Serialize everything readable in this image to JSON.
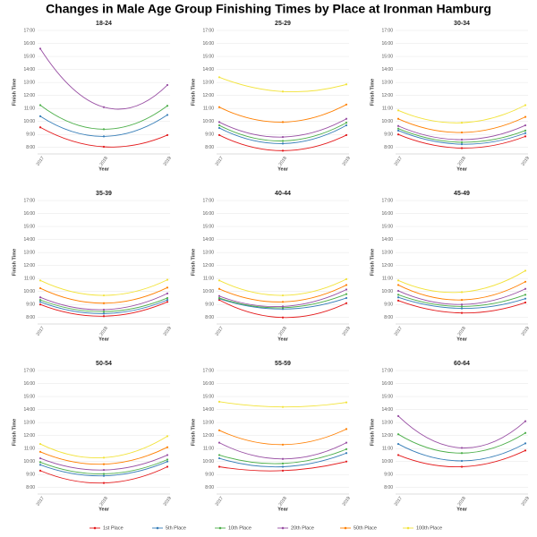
{
  "title": "Changes in Male Age Group Finishing Times by Place at Ironman Hamburg",
  "chart_data": [
    {
      "type": "line",
      "title": "18-24",
      "x_label": "Year",
      "y_label": "Finish Time",
      "categories": [
        "2017",
        "2018",
        "2019"
      ],
      "ylim": [
        7.5,
        17
      ],
      "yticks": [
        {
          "value": 8,
          "label": "8:00"
        },
        {
          "value": 9,
          "label": "9:00"
        },
        {
          "value": 10,
          "label": "10:00"
        },
        {
          "value": 11,
          "label": "11:00"
        },
        {
          "value": 12,
          "label": "12:00"
        },
        {
          "value": 13,
          "label": "13:00"
        },
        {
          "value": 14,
          "label": "14:00"
        },
        {
          "value": 15,
          "label": "15:00"
        },
        {
          "value": 16,
          "label": "16:00"
        },
        {
          "value": 17,
          "label": "17:00"
        }
      ],
      "series": [
        {
          "name": "1st Place",
          "color": "#e41a1c",
          "values": [
            9.55,
            8.05,
            8.95
          ]
        },
        {
          "name": "5th Place",
          "color": "#377eb8",
          "values": [
            10.4,
            8.85,
            10.5
          ]
        },
        {
          "name": "10th Place",
          "color": "#4daf4a",
          "values": [
            11.25,
            9.4,
            11.2
          ]
        },
        {
          "name": "20th Place",
          "color": "#984ea3",
          "values": [
            15.6,
            11.1,
            12.8
          ]
        },
        {
          "name": "50th Place",
          "color": "#ff7f00",
          "values": [
            null,
            null,
            null
          ]
        },
        {
          "name": "100th Place",
          "color": "#f2e33a",
          "values": [
            null,
            null,
            null
          ]
        }
      ]
    },
    {
      "type": "line",
      "title": "25-29",
      "x_label": "Year",
      "y_label": "Finish Time",
      "categories": [
        "2017",
        "2018",
        "2019"
      ],
      "ylim": [
        7.5,
        17
      ],
      "yticks": [
        {
          "value": 8,
          "label": "8:00"
        },
        {
          "value": 9,
          "label": "9:00"
        },
        {
          "value": 10,
          "label": "10:00"
        },
        {
          "value": 11,
          "label": "11:00"
        },
        {
          "value": 12,
          "label": "12:00"
        },
        {
          "value": 13,
          "label": "13:00"
        },
        {
          "value": 14,
          "label": "14:00"
        },
        {
          "value": 15,
          "label": "15:00"
        },
        {
          "value": 16,
          "label": "16:00"
        },
        {
          "value": 17,
          "label": "17:00"
        }
      ],
      "series": [
        {
          "name": "1st Place",
          "color": "#e41a1c",
          "values": [
            8.95,
            7.75,
            8.95
          ]
        },
        {
          "name": "5th Place",
          "color": "#377eb8",
          "values": [
            9.5,
            8.3,
            9.7
          ]
        },
        {
          "name": "10th Place",
          "color": "#4daf4a",
          "values": [
            9.7,
            8.5,
            9.9
          ]
        },
        {
          "name": "20th Place",
          "color": "#984ea3",
          "values": [
            9.95,
            8.8,
            10.2
          ]
        },
        {
          "name": "50th Place",
          "color": "#ff7f00",
          "values": [
            11.1,
            9.95,
            11.3
          ]
        },
        {
          "name": "100th Place",
          "color": "#f2e33a",
          "values": [
            13.4,
            12.3,
            12.85
          ]
        }
      ]
    },
    {
      "type": "line",
      "title": "30-34",
      "x_label": "Year",
      "y_label": "Finish Time",
      "categories": [
        "2017",
        "2018",
        "2019"
      ],
      "ylim": [
        7.5,
        17
      ],
      "yticks": [
        {
          "value": 8,
          "label": "8:00"
        },
        {
          "value": 9,
          "label": "9:00"
        },
        {
          "value": 10,
          "label": "10:00"
        },
        {
          "value": 11,
          "label": "11:00"
        },
        {
          "value": 12,
          "label": "12:00"
        },
        {
          "value": 13,
          "label": "13:00"
        },
        {
          "value": 14,
          "label": "14:00"
        },
        {
          "value": 15,
          "label": "15:00"
        },
        {
          "value": 16,
          "label": "16:00"
        },
        {
          "value": 17,
          "label": "17:00"
        }
      ],
      "series": [
        {
          "name": "1st Place",
          "color": "#e41a1c",
          "values": [
            9.0,
            7.95,
            8.85
          ]
        },
        {
          "name": "5th Place",
          "color": "#377eb8",
          "values": [
            9.3,
            8.25,
            9.1
          ]
        },
        {
          "name": "10th Place",
          "color": "#4daf4a",
          "values": [
            9.45,
            8.4,
            9.3
          ]
        },
        {
          "name": "20th Place",
          "color": "#984ea3",
          "values": [
            9.65,
            8.6,
            9.7
          ]
        },
        {
          "name": "50th Place",
          "color": "#ff7f00",
          "values": [
            10.2,
            9.15,
            10.35
          ]
        },
        {
          "name": "100th Place",
          "color": "#f2e33a",
          "values": [
            10.85,
            9.9,
            11.25
          ]
        }
      ]
    },
    {
      "type": "line",
      "title": "35-39",
      "x_label": "Year",
      "y_label": "Finish Time",
      "categories": [
        "2017",
        "2018",
        "2019"
      ],
      "ylim": [
        7.5,
        17
      ],
      "yticks": [
        {
          "value": 8,
          "label": "8:00"
        },
        {
          "value": 9,
          "label": "9:00"
        },
        {
          "value": 10,
          "label": "10:00"
        },
        {
          "value": 11,
          "label": "11:00"
        },
        {
          "value": 12,
          "label": "12:00"
        },
        {
          "value": 13,
          "label": "13:00"
        },
        {
          "value": 14,
          "label": "14:00"
        },
        {
          "value": 15,
          "label": "15:00"
        },
        {
          "value": 16,
          "label": "16:00"
        },
        {
          "value": 17,
          "label": "17:00"
        }
      ],
      "series": [
        {
          "name": "1st Place",
          "color": "#e41a1c",
          "values": [
            9.0,
            8.1,
            9.2
          ]
        },
        {
          "name": "5th Place",
          "color": "#377eb8",
          "values": [
            9.2,
            8.3,
            9.35
          ]
        },
        {
          "name": "10th Place",
          "color": "#4daf4a",
          "values": [
            9.35,
            8.45,
            9.5
          ]
        },
        {
          "name": "20th Place",
          "color": "#984ea3",
          "values": [
            9.55,
            8.6,
            9.85
          ]
        },
        {
          "name": "50th Place",
          "color": "#ff7f00",
          "values": [
            10.25,
            9.1,
            10.3
          ]
        },
        {
          "name": "100th Place",
          "color": "#f2e33a",
          "values": [
            10.85,
            9.7,
            10.9
          ]
        }
      ]
    },
    {
      "type": "line",
      "title": "40-44",
      "x_label": "Year",
      "y_label": "Finish Time",
      "categories": [
        "2017",
        "2018",
        "2019"
      ],
      "ylim": [
        7.5,
        17
      ],
      "yticks": [
        {
          "value": 8,
          "label": "8:00"
        },
        {
          "value": 9,
          "label": "9:00"
        },
        {
          "value": 10,
          "label": "10:00"
        },
        {
          "value": 11,
          "label": "11:00"
        },
        {
          "value": 12,
          "label": "12:00"
        },
        {
          "value": 13,
          "label": "13:00"
        },
        {
          "value": 14,
          "label": "14:00"
        },
        {
          "value": 15,
          "label": "15:00"
        },
        {
          "value": 16,
          "label": "16:00"
        },
        {
          "value": 17,
          "label": "17:00"
        }
      ],
      "series": [
        {
          "name": "1st Place",
          "color": "#e41a1c",
          "values": [
            9.35,
            8.0,
            9.1
          ]
        },
        {
          "name": "5th Place",
          "color": "#377eb8",
          "values": [
            9.45,
            8.65,
            9.5
          ]
        },
        {
          "name": "10th Place",
          "color": "#4daf4a",
          "values": [
            9.5,
            8.75,
            9.8
          ]
        },
        {
          "name": "20th Place",
          "color": "#984ea3",
          "values": [
            9.65,
            8.85,
            10.15
          ]
        },
        {
          "name": "50th Place",
          "color": "#ff7f00",
          "values": [
            10.2,
            9.2,
            10.5
          ]
        },
        {
          "name": "100th Place",
          "color": "#f2e33a",
          "values": [
            10.85,
            9.7,
            10.95
          ]
        }
      ]
    },
    {
      "type": "line",
      "title": "45-49",
      "x_label": "Year",
      "y_label": "Finish Time",
      "categories": [
        "2017",
        "2018",
        "2019"
      ],
      "ylim": [
        7.5,
        17
      ],
      "yticks": [
        {
          "value": 8,
          "label": "8:00"
        },
        {
          "value": 9,
          "label": "9:00"
        },
        {
          "value": 10,
          "label": "10:00"
        },
        {
          "value": 11,
          "label": "11:00"
        },
        {
          "value": 12,
          "label": "12:00"
        },
        {
          "value": 13,
          "label": "13:00"
        },
        {
          "value": 14,
          "label": "14:00"
        },
        {
          "value": 15,
          "label": "15:00"
        },
        {
          "value": 16,
          "label": "16:00"
        },
        {
          "value": 17,
          "label": "17:00"
        }
      ],
      "series": [
        {
          "name": "1st Place",
          "color": "#e41a1c",
          "values": [
            9.3,
            8.35,
            9.15
          ]
        },
        {
          "name": "5th Place",
          "color": "#377eb8",
          "values": [
            9.55,
            8.7,
            9.45
          ]
        },
        {
          "name": "10th Place",
          "color": "#4daf4a",
          "values": [
            9.75,
            8.85,
            9.75
          ]
        },
        {
          "name": "20th Place",
          "color": "#984ea3",
          "values": [
            10.05,
            9.0,
            10.2
          ]
        },
        {
          "name": "50th Place",
          "color": "#ff7f00",
          "values": [
            10.5,
            9.35,
            10.75
          ]
        },
        {
          "name": "100th Place",
          "color": "#f2e33a",
          "values": [
            10.85,
            9.95,
            11.6
          ]
        }
      ]
    },
    {
      "type": "line",
      "title": "50-54",
      "x_label": "Year",
      "y_label": "Finish Time",
      "categories": [
        "2017",
        "2018",
        "2019"
      ],
      "ylim": [
        7.5,
        17
      ],
      "yticks": [
        {
          "value": 8,
          "label": "8:00"
        },
        {
          "value": 9,
          "label": "9:00"
        },
        {
          "value": 10,
          "label": "10:00"
        },
        {
          "value": 11,
          "label": "11:00"
        },
        {
          "value": 12,
          "label": "12:00"
        },
        {
          "value": 13,
          "label": "13:00"
        },
        {
          "value": 14,
          "label": "14:00"
        },
        {
          "value": 15,
          "label": "15:00"
        },
        {
          "value": 16,
          "label": "16:00"
        },
        {
          "value": 17,
          "label": "17:00"
        }
      ],
      "series": [
        {
          "name": "1st Place",
          "color": "#e41a1c",
          "values": [
            9.3,
            8.35,
            9.6
          ]
        },
        {
          "name": "5th Place",
          "color": "#377eb8",
          "values": [
            9.75,
            8.9,
            10.0
          ]
        },
        {
          "name": "10th Place",
          "color": "#4daf4a",
          "values": [
            9.95,
            9.05,
            10.15
          ]
        },
        {
          "name": "20th Place",
          "color": "#984ea3",
          "values": [
            10.25,
            9.35,
            10.5
          ]
        },
        {
          "name": "50th Place",
          "color": "#ff7f00",
          "values": [
            10.75,
            9.8,
            11.1
          ]
        },
        {
          "name": "100th Place",
          "color": "#f2e33a",
          "values": [
            11.35,
            10.3,
            11.95
          ]
        }
      ]
    },
    {
      "type": "line",
      "title": "55-59",
      "x_label": "Year",
      "y_label": "Finish Time",
      "categories": [
        "2017",
        "2018",
        "2019"
      ],
      "ylim": [
        7.5,
        17
      ],
      "yticks": [
        {
          "value": 8,
          "label": "8:00"
        },
        {
          "value": 9,
          "label": "9:00"
        },
        {
          "value": 10,
          "label": "10:00"
        },
        {
          "value": 11,
          "label": "11:00"
        },
        {
          "value": 12,
          "label": "12:00"
        },
        {
          "value": 13,
          "label": "13:00"
        },
        {
          "value": 14,
          "label": "14:00"
        },
        {
          "value": 15,
          "label": "15:00"
        },
        {
          "value": 16,
          "label": "16:00"
        },
        {
          "value": 17,
          "label": "17:00"
        }
      ],
      "series": [
        {
          "name": "1st Place",
          "color": "#e41a1c",
          "values": [
            9.6,
            9.3,
            10.0
          ]
        },
        {
          "name": "5th Place",
          "color": "#377eb8",
          "values": [
            10.25,
            9.6,
            10.65
          ]
        },
        {
          "name": "10th Place",
          "color": "#4daf4a",
          "values": [
            10.5,
            9.85,
            10.95
          ]
        },
        {
          "name": "20th Place",
          "color": "#984ea3",
          "values": [
            11.45,
            10.2,
            11.45
          ]
        },
        {
          "name": "50th Place",
          "color": "#ff7f00",
          "values": [
            12.4,
            11.3,
            12.5
          ]
        },
        {
          "name": "100th Place",
          "color": "#f2e33a",
          "values": [
            14.6,
            14.2,
            14.55
          ]
        }
      ]
    },
    {
      "type": "line",
      "title": "60-64",
      "x_label": "Year",
      "y_label": "Finish Time",
      "categories": [
        "2017",
        "2018",
        "2019"
      ],
      "ylim": [
        7.5,
        17
      ],
      "yticks": [
        {
          "value": 8,
          "label": "8:00"
        },
        {
          "value": 9,
          "label": "9:00"
        },
        {
          "value": 10,
          "label": "10:00"
        },
        {
          "value": 11,
          "label": "11:00"
        },
        {
          "value": 12,
          "label": "12:00"
        },
        {
          "value": 13,
          "label": "13:00"
        },
        {
          "value": 14,
          "label": "14:00"
        },
        {
          "value": 15,
          "label": "15:00"
        },
        {
          "value": 16,
          "label": "16:00"
        },
        {
          "value": 17,
          "label": "17:00"
        }
      ],
      "series": [
        {
          "name": "1st Place",
          "color": "#e41a1c",
          "values": [
            10.5,
            9.6,
            10.85
          ]
        },
        {
          "name": "5th Place",
          "color": "#377eb8",
          "values": [
            11.35,
            10.05,
            11.4
          ]
        },
        {
          "name": "10th Place",
          "color": "#4daf4a",
          "values": [
            12.1,
            10.65,
            12.2
          ]
        },
        {
          "name": "20th Place",
          "color": "#984ea3",
          "values": [
            13.5,
            11.05,
            13.1
          ]
        },
        {
          "name": "50th Place",
          "color": "#ff7f00",
          "values": [
            null,
            null,
            null
          ]
        },
        {
          "name": "100th Place",
          "color": "#f2e33a",
          "values": [
            null,
            null,
            null
          ]
        }
      ]
    }
  ]
}
